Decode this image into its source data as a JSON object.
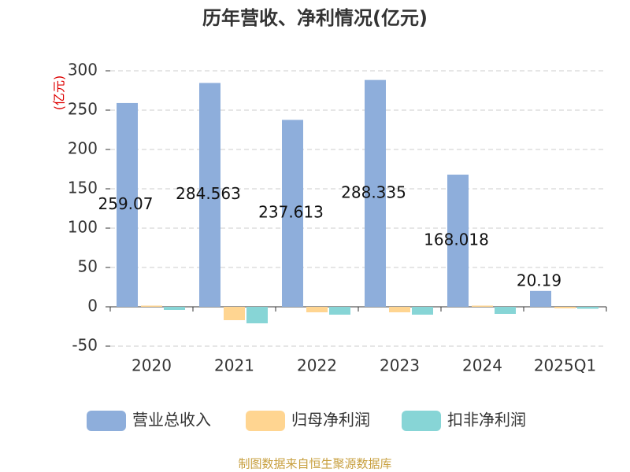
{
  "chart_data": {
    "type": "bar",
    "title": "历年营收、净利情况(亿元)",
    "y_label": "(亿元)",
    "categories": [
      "2020",
      "2021",
      "2022",
      "2023",
      "2024",
      "2025Q1"
    ],
    "series": [
      {
        "name": "营业总收入",
        "color": "#8eaedb",
        "values": [
          259.07,
          284.563,
          237.613,
          288.335,
          168.018,
          20.19
        ]
      },
      {
        "name": "归母净利润",
        "color": "#ffd591",
        "values": [
          1.5,
          -17,
          -7,
          -7,
          1.5,
          -2
        ]
      },
      {
        "name": "扣非净利润",
        "color": "#87d5d6",
        "values": [
          -4,
          -21,
          -10,
          -10,
          -9,
          -2.5
        ]
      }
    ],
    "ylim": [
      -50,
      300
    ],
    "yticks": [
      -50,
      0,
      50,
      100,
      150,
      200,
      250,
      300
    ],
    "grid": true,
    "source": "制图数据来自恒生聚源数据库"
  }
}
